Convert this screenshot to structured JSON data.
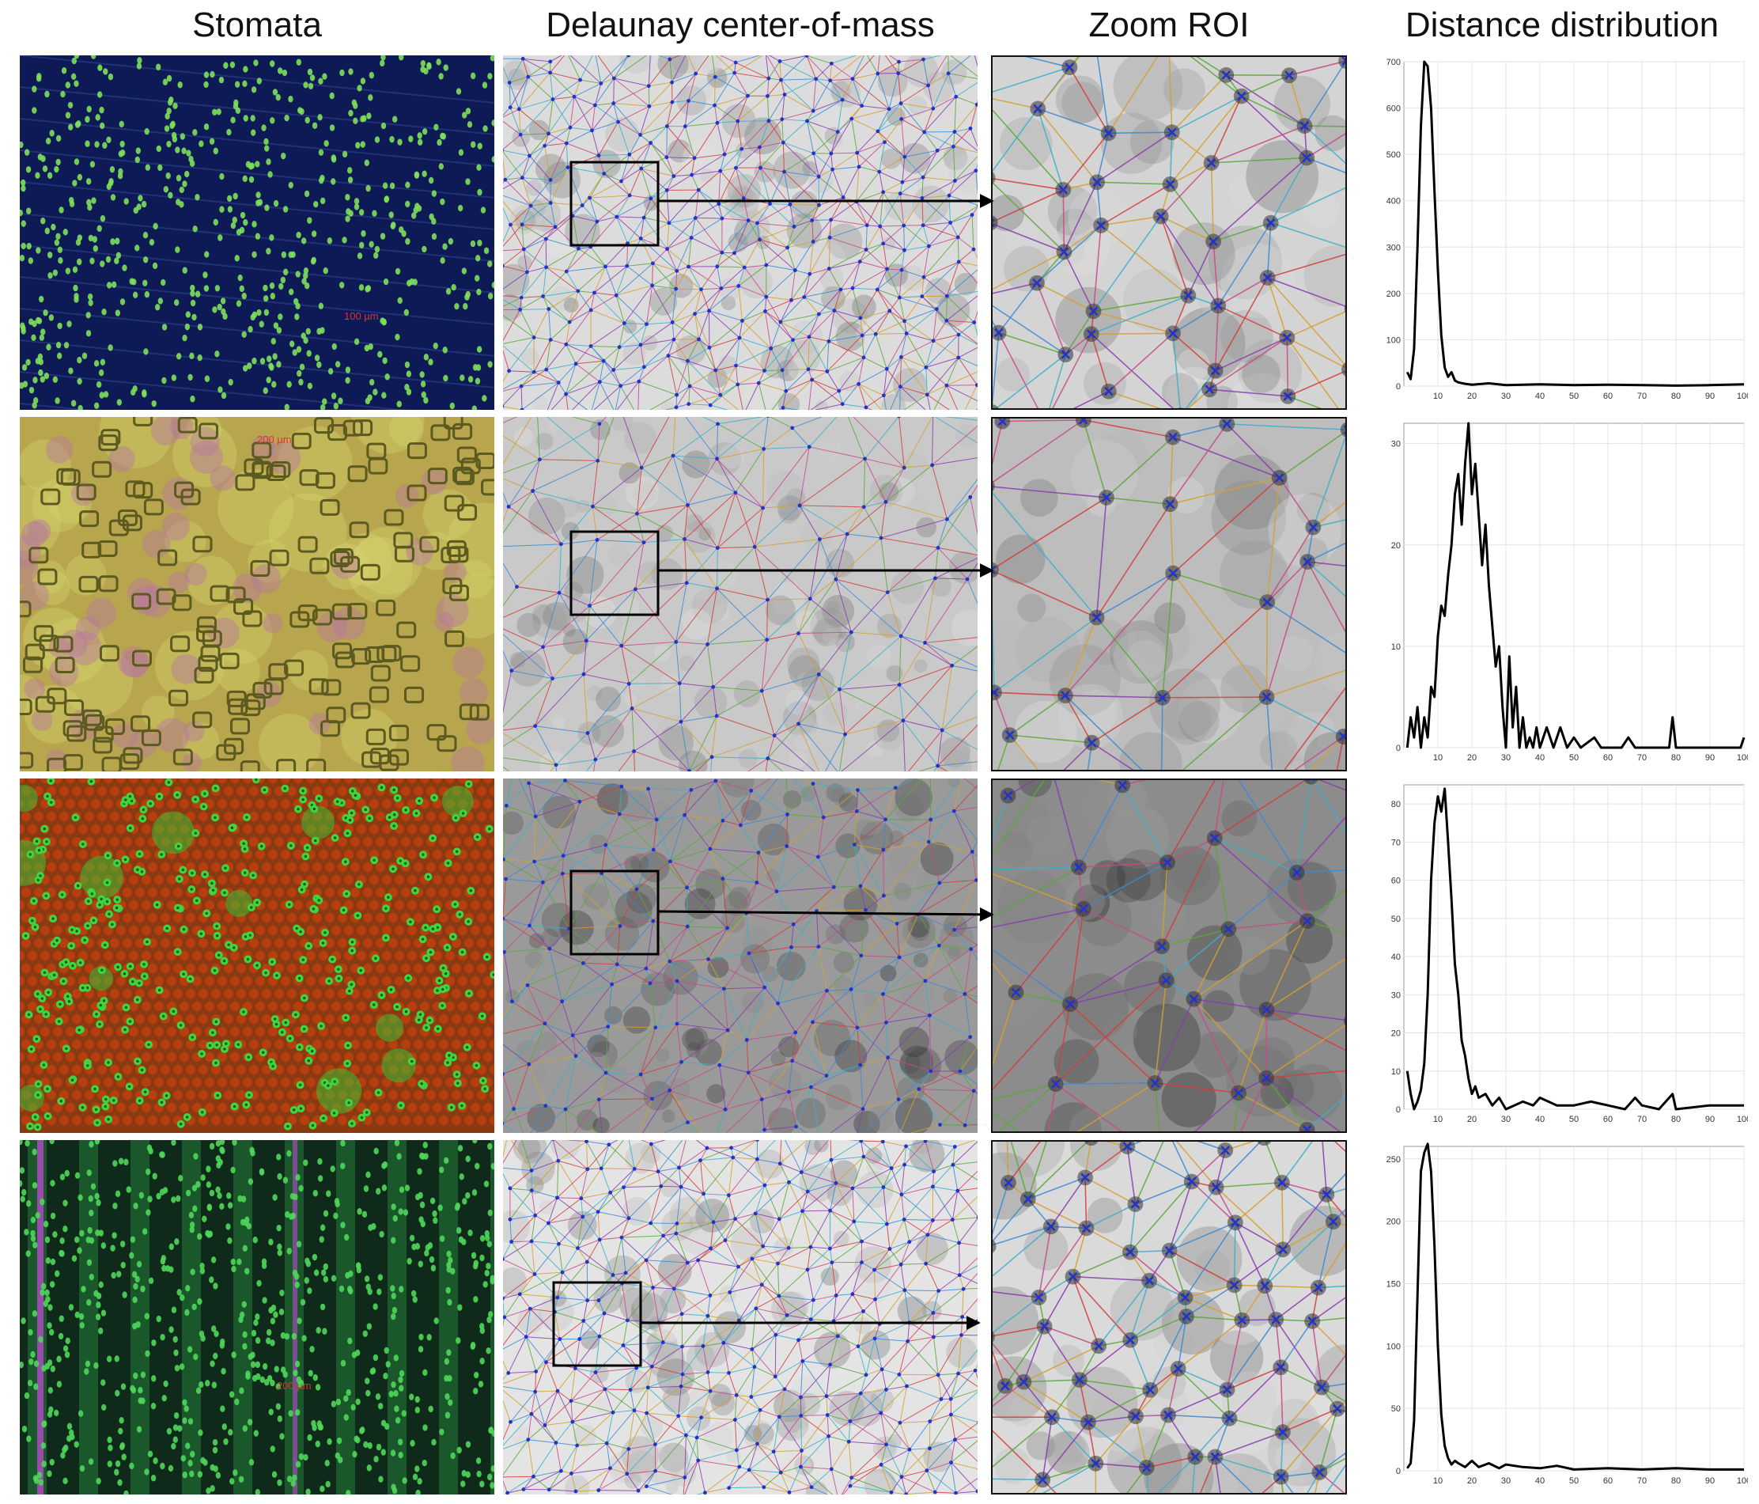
{
  "column_titles": {
    "stomata": "Stomata",
    "delaunay": "Delaunay center-of-mass",
    "zoom": "Zoom ROI",
    "distance": "Distance distribution"
  },
  "rows": [
    {
      "scale_label": "100 µm",
      "stomata_bg": "#0d1a55",
      "stomata_dot": "#7ee05a",
      "delaunay_bg": "#dcdcdc",
      "zoom_bg": "#d4d4d4"
    },
    {
      "scale_label": "200 µm",
      "stomata_bg": "#b7a64e",
      "stomata_dot": "#5c5a1e",
      "delaunay_bg": "#c9c9c9",
      "zoom_bg": "#bdbdbd"
    },
    {
      "scale_label": "",
      "stomata_bg": "#8a3a10",
      "stomata_dot": "#3fd43f",
      "delaunay_bg": "#9a9a9a",
      "zoom_bg": "#8c8c8c"
    },
    {
      "scale_label": "200 µm",
      "stomata_bg": "#0f2a1a",
      "stomata_dot": "#4fd65a",
      "delaunay_bg": "#e4e4e4",
      "zoom_bg": "#dadada"
    }
  ],
  "edge_colors": [
    "#d43c3c",
    "#3c8ad4",
    "#8a3cb0",
    "#d4a030",
    "#5aa83c",
    "#3cb0c8",
    "#c84a8a"
  ],
  "node_color": "#2233cc",
  "chart_data": [
    {
      "type": "line",
      "ylim": [
        0,
        700
      ],
      "yticks": [
        0,
        100,
        200,
        300,
        400,
        500,
        600,
        700
      ],
      "xlim": [
        0,
        100
      ],
      "xticks": [
        10,
        20,
        30,
        40,
        50,
        60,
        70,
        80,
        90,
        100
      ],
      "grid": true,
      "series": [
        {
          "x": [
            1,
            2,
            3,
            4,
            5,
            6,
            7,
            8,
            9,
            10,
            11,
            12,
            13,
            14,
            15,
            16,
            18,
            20,
            25,
            30,
            40,
            50,
            60,
            70,
            80,
            90,
            100
          ],
          "y": [
            30,
            15,
            80,
            300,
            560,
            700,
            690,
            600,
            420,
            250,
            110,
            40,
            20,
            30,
            12,
            8,
            5,
            3,
            6,
            2,
            4,
            2,
            3,
            2,
            1,
            2,
            4
          ]
        }
      ]
    },
    {
      "type": "line",
      "ylim": [
        0,
        32
      ],
      "yticks": [
        0,
        10,
        20,
        30
      ],
      "xlim": [
        0,
        100
      ],
      "xticks": [
        10,
        20,
        30,
        40,
        50,
        60,
        70,
        80,
        90,
        100
      ],
      "grid": true,
      "series": [
        {
          "x": [
            1,
            2,
            3,
            4,
            5,
            6,
            7,
            8,
            9,
            10,
            11,
            12,
            13,
            14,
            15,
            16,
            17,
            18,
            19,
            20,
            21,
            22,
            23,
            24,
            25,
            26,
            27,
            28,
            29,
            30,
            31,
            32,
            33,
            34,
            35,
            36,
            37,
            38,
            39,
            40,
            42,
            44,
            46,
            48,
            50,
            52,
            56,
            58,
            64,
            66,
            68,
            78,
            79,
            80,
            82,
            99,
            100
          ],
          "y": [
            0,
            3,
            1,
            4,
            0,
            3,
            1,
            6,
            5,
            11,
            14,
            13,
            17,
            20,
            25,
            27,
            22,
            28,
            32,
            25,
            28,
            23,
            18,
            22,
            16,
            12,
            8,
            10,
            4,
            0,
            9,
            2,
            6,
            0,
            3,
            0,
            1,
            0,
            2,
            0,
            2,
            0,
            2,
            0,
            1,
            0,
            1,
            0,
            0,
            1,
            0,
            0,
            3,
            0,
            0,
            0,
            1
          ]
        }
      ]
    },
    {
      "type": "line",
      "ylim": [
        0,
        85
      ],
      "yticks": [
        0,
        10,
        20,
        30,
        40,
        50,
        60,
        70,
        80
      ],
      "xlim": [
        0,
        100
      ],
      "xticks": [
        10,
        20,
        30,
        40,
        50,
        60,
        70,
        80,
        90,
        100
      ],
      "grid": true,
      "series": [
        {
          "x": [
            1,
            2,
            3,
            4,
            5,
            6,
            7,
            8,
            9,
            10,
            11,
            12,
            13,
            14,
            15,
            16,
            17,
            18,
            19,
            20,
            21,
            22,
            24,
            26,
            28,
            30,
            35,
            38,
            40,
            45,
            50,
            55,
            60,
            65,
            68,
            70,
            75,
            79,
            80,
            90,
            100
          ],
          "y": [
            10,
            4,
            0,
            2,
            5,
            12,
            30,
            60,
            75,
            82,
            78,
            84,
            70,
            55,
            38,
            30,
            18,
            14,
            8,
            4,
            6,
            3,
            4,
            1,
            3,
            0,
            2,
            1,
            3,
            1,
            1,
            2,
            1,
            0,
            3,
            1,
            0,
            4,
            0,
            1,
            1
          ]
        }
      ]
    },
    {
      "type": "line",
      "ylim": [
        0,
        260
      ],
      "yticks": [
        0,
        50,
        100,
        150,
        200,
        250
      ],
      "xlim": [
        0,
        100
      ],
      "xticks": [
        10,
        20,
        30,
        40,
        50,
        60,
        70,
        80,
        90,
        100
      ],
      "grid": true,
      "series": [
        {
          "x": [
            1,
            2,
            3,
            4,
            5,
            6,
            7,
            8,
            9,
            10,
            11,
            12,
            13,
            14,
            15,
            16,
            18,
            20,
            22,
            25,
            28,
            30,
            35,
            40,
            45,
            50,
            60,
            70,
            80,
            90,
            100
          ],
          "y": [
            2,
            6,
            40,
            140,
            240,
            255,
            262,
            240,
            180,
            100,
            45,
            20,
            10,
            5,
            8,
            6,
            3,
            8,
            3,
            6,
            2,
            5,
            3,
            2,
            4,
            1,
            2,
            1,
            2,
            1,
            1
          ]
        }
      ]
    }
  ]
}
